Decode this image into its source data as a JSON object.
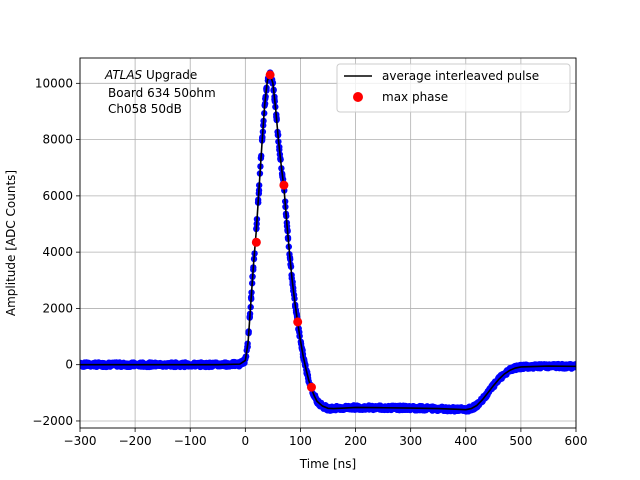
{
  "chart_data": {
    "type": "scatter",
    "xlabel": "Time [ns]",
    "ylabel": "Amplitude [ADC Counts]",
    "xlim": [
      -300,
      600
    ],
    "ylim": [
      -2250,
      10900
    ],
    "xticks": [
      -300,
      -200,
      -100,
      0,
      100,
      200,
      300,
      400,
      500,
      600
    ],
    "yticks": [
      -2000,
      0,
      2000,
      4000,
      6000,
      8000,
      10000
    ],
    "xtick_labels": [
      "−300",
      "−200",
      "−100",
      "0",
      "100",
      "200",
      "300",
      "400",
      "500",
      "600"
    ],
    "ytick_labels": [
      "−2000",
      "0",
      "2000",
      "4000",
      "6000",
      "8000",
      "10000"
    ],
    "grid": true,
    "legend_position": "top-right",
    "annotation": {
      "atlas": "ATLAS",
      "upgrade": " Upgrade",
      "line2": "Board 634 50ohm",
      "line3": "Ch058 50dB"
    },
    "series": [
      {
        "name": "average interleaved pulse",
        "kind": "line",
        "color": "#000000",
        "x": [
          -300,
          -250,
          -200,
          -150,
          -100,
          -50,
          -10,
          0,
          5,
          10,
          15,
          20,
          25,
          30,
          35,
          40,
          45,
          50,
          55,
          60,
          65,
          70,
          75,
          80,
          85,
          90,
          95,
          100,
          105,
          110,
          115,
          120,
          125,
          130,
          140,
          150,
          160,
          180,
          200,
          250,
          300,
          350,
          380,
          400,
          410,
          420,
          430,
          440,
          450,
          460,
          470,
          480,
          490,
          500,
          550,
          600
        ],
        "y": [
          0,
          0,
          0,
          0,
          0,
          0,
          20,
          150,
          800,
          2200,
          3600,
          4800,
          6300,
          7800,
          9200,
          10100,
          10320,
          10000,
          9100,
          8000,
          7100,
          6300,
          5100,
          4000,
          3000,
          2200,
          1500,
          850,
          300,
          -150,
          -550,
          -850,
          -1100,
          -1300,
          -1470,
          -1550,
          -1560,
          -1540,
          -1520,
          -1530,
          -1540,
          -1560,
          -1580,
          -1600,
          -1560,
          -1450,
          -1250,
          -1000,
          -750,
          -520,
          -330,
          -200,
          -120,
          -80,
          -50,
          -60
        ]
      },
      {
        "name": "",
        "kind": "scatter-band",
        "color": "#0000ff",
        "x": [
          -300,
          -250,
          -200,
          -150,
          -100,
          -50,
          -10,
          0,
          5,
          10,
          15,
          20,
          25,
          30,
          35,
          40,
          45,
          50,
          55,
          60,
          65,
          70,
          75,
          80,
          85,
          90,
          95,
          100,
          105,
          110,
          115,
          120,
          125,
          130,
          140,
          150,
          160,
          180,
          200,
          250,
          300,
          350,
          380,
          400,
          410,
          420,
          430,
          440,
          450,
          460,
          470,
          480,
          490,
          500,
          550,
          600
        ],
        "y": [
          0,
          0,
          0,
          0,
          0,
          0,
          20,
          150,
          800,
          2200,
          3600,
          4800,
          6300,
          7800,
          9200,
          10100,
          10320,
          10000,
          9100,
          8000,
          7100,
          6300,
          5100,
          4000,
          3000,
          2200,
          1500,
          850,
          300,
          -150,
          -550,
          -850,
          -1100,
          -1300,
          -1470,
          -1550,
          -1560,
          -1540,
          -1520,
          -1530,
          -1540,
          -1560,
          -1580,
          -1600,
          -1560,
          -1450,
          -1250,
          -1000,
          -750,
          -520,
          -330,
          -200,
          -120,
          -80,
          -50,
          -60
        ]
      },
      {
        "name": "max phase",
        "kind": "scatter",
        "color": "#ff0000",
        "x": [
          20,
          45,
          70,
          95,
          120
        ],
        "y": [
          4350,
          10300,
          6380,
          1520,
          -800
        ]
      }
    ]
  }
}
